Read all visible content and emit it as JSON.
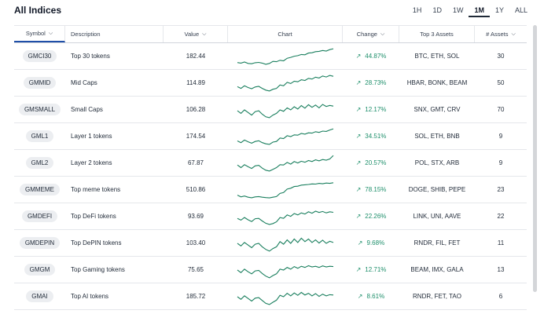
{
  "title": "All Indices",
  "ranges": [
    {
      "label": "1H",
      "active": false
    },
    {
      "label": "1D",
      "active": false
    },
    {
      "label": "1W",
      "active": false
    },
    {
      "label": "1M",
      "active": true
    },
    {
      "label": "1Y",
      "active": false
    },
    {
      "label": "ALL",
      "active": false
    }
  ],
  "headers": {
    "symbol": "Symbol",
    "description": "Description",
    "value": "Value",
    "chart": "Chart",
    "change": "Change",
    "top3": "Top 3 Assets",
    "assets": "# Assets"
  },
  "rows": [
    {
      "symbol": "GMCI30",
      "description": "Top 30 tokens",
      "value": "182.44",
      "change": "44.87%",
      "top3": "BTC, ETH, SOL",
      "assets": "30",
      "spark": [
        0.15,
        0.12,
        0.18,
        0.1,
        0.08,
        0.14,
        0.16,
        0.12,
        0.05,
        0.1,
        0.22,
        0.2,
        0.28,
        0.25,
        0.4,
        0.45,
        0.52,
        0.55,
        0.62,
        0.6,
        0.7,
        0.72,
        0.78,
        0.8,
        0.85,
        0.82,
        0.9,
        0.95
      ]
    },
    {
      "symbol": "GMMID",
      "description": "Mid Caps",
      "value": "114.89",
      "change": "28.73%",
      "top3": "HBAR, BONK, BEAM",
      "assets": "50",
      "spark": [
        0.3,
        0.2,
        0.35,
        0.25,
        0.18,
        0.28,
        0.32,
        0.2,
        0.1,
        0.05,
        0.15,
        0.2,
        0.4,
        0.35,
        0.55,
        0.48,
        0.62,
        0.58,
        0.7,
        0.66,
        0.78,
        0.74,
        0.85,
        0.8,
        0.92,
        0.86,
        0.95,
        0.9
      ]
    },
    {
      "symbol": "GMSMALL",
      "description": "Small Caps",
      "value": "106.28",
      "change": "12.17%",
      "top3": "SNX, GMT, CRV",
      "assets": "70",
      "spark": [
        0.45,
        0.3,
        0.5,
        0.35,
        0.2,
        0.4,
        0.45,
        0.25,
        0.1,
        0.05,
        0.2,
        0.3,
        0.5,
        0.42,
        0.62,
        0.5,
        0.68,
        0.55,
        0.75,
        0.6,
        0.8,
        0.65,
        0.78,
        0.62,
        0.82,
        0.7,
        0.76,
        0.72
      ]
    },
    {
      "symbol": "GML1",
      "description": "Layer 1 tokens",
      "value": "174.54",
      "change": "34.51%",
      "top3": "SOL, ETH, BNB",
      "assets": "9",
      "spark": [
        0.25,
        0.15,
        0.3,
        0.2,
        0.12,
        0.22,
        0.26,
        0.15,
        0.08,
        0.05,
        0.18,
        0.22,
        0.42,
        0.38,
        0.55,
        0.5,
        0.6,
        0.58,
        0.68,
        0.64,
        0.72,
        0.7,
        0.78,
        0.74,
        0.82,
        0.8,
        0.88,
        0.95
      ]
    },
    {
      "symbol": "GML2",
      "description": "Layer 2 tokens",
      "value": "67.87",
      "change": "20.57%",
      "top3": "POL, STX, ARB",
      "assets": "9",
      "spark": [
        0.4,
        0.25,
        0.42,
        0.3,
        0.2,
        0.35,
        0.38,
        0.22,
        0.1,
        0.05,
        0.15,
        0.25,
        0.42,
        0.4,
        0.55,
        0.45,
        0.6,
        0.52,
        0.62,
        0.56,
        0.66,
        0.6,
        0.7,
        0.64,
        0.72,
        0.68,
        0.75,
        0.95
      ]
    },
    {
      "symbol": "GMMEME",
      "description": "Top meme tokens",
      "value": "510.86",
      "change": "78.15%",
      "top3": "DOGE, SHIB, PEPE",
      "assets": "23",
      "spark": [
        0.2,
        0.1,
        0.15,
        0.08,
        0.05,
        0.1,
        0.12,
        0.08,
        0.06,
        0.04,
        0.08,
        0.12,
        0.3,
        0.35,
        0.55,
        0.6,
        0.7,
        0.72,
        0.78,
        0.8,
        0.82,
        0.85,
        0.84,
        0.88,
        0.86,
        0.9,
        0.88,
        0.92
      ]
    },
    {
      "symbol": "GMDEFI",
      "description": "Top DeFi tokens",
      "value": "93.69",
      "change": "22.26%",
      "top3": "LINK, UNI, AAVE",
      "assets": "22",
      "spark": [
        0.4,
        0.3,
        0.45,
        0.32,
        0.22,
        0.38,
        0.4,
        0.25,
        0.12,
        0.05,
        0.1,
        0.2,
        0.45,
        0.4,
        0.6,
        0.52,
        0.68,
        0.6,
        0.72,
        0.65,
        0.78,
        0.7,
        0.82,
        0.74,
        0.8,
        0.72,
        0.78,
        0.75
      ]
    },
    {
      "symbol": "GMDEPIN",
      "description": "Top DePIN tokens",
      "value": "103.40",
      "change": "9.68%",
      "top3": "RNDR, FIL, FET",
      "assets": "11",
      "spark": [
        0.5,
        0.35,
        0.55,
        0.4,
        0.25,
        0.45,
        0.5,
        0.3,
        0.15,
        0.05,
        0.2,
        0.3,
        0.6,
        0.45,
        0.7,
        0.5,
        0.75,
        0.55,
        0.8,
        0.6,
        0.75,
        0.55,
        0.7,
        0.52,
        0.68,
        0.5,
        0.62,
        0.55
      ]
    },
    {
      "symbol": "GMGM",
      "description": "Top Gaming tokens",
      "value": "75.65",
      "change": "12.71%",
      "top3": "BEAM, IMX, GALA",
      "assets": "13",
      "spark": [
        0.5,
        0.35,
        0.55,
        0.4,
        0.28,
        0.45,
        0.48,
        0.3,
        0.15,
        0.05,
        0.18,
        0.28,
        0.55,
        0.5,
        0.65,
        0.55,
        0.7,
        0.6,
        0.72,
        0.65,
        0.75,
        0.68,
        0.72,
        0.65,
        0.74,
        0.68,
        0.72,
        0.7
      ]
    },
    {
      "symbol": "GMAI",
      "description": "Top AI tokens",
      "value": "185.72",
      "change": "8.61%",
      "top3": "RNDR, FET, TAO",
      "assets": "6",
      "spark": [
        0.5,
        0.35,
        0.55,
        0.4,
        0.25,
        0.42,
        0.45,
        0.28,
        0.12,
        0.05,
        0.18,
        0.3,
        0.58,
        0.5,
        0.7,
        0.55,
        0.72,
        0.58,
        0.75,
        0.6,
        0.7,
        0.55,
        0.68,
        0.52,
        0.65,
        0.55,
        0.62,
        0.6
      ]
    }
  ]
}
